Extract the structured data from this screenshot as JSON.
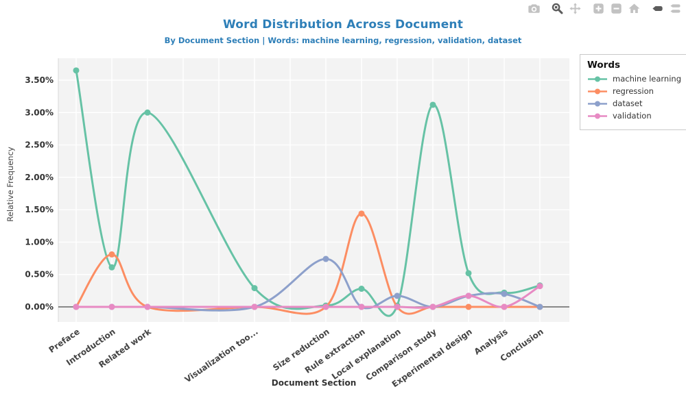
{
  "header": {
    "title": "Word Distribution Across Document",
    "subtitle": "By Document Section | Words: machine learning, regression, validation, dataset"
  },
  "toolbar": {
    "buttons": [
      {
        "name": "camera",
        "active": false,
        "group_start": false
      },
      {
        "name": "zoom",
        "active": true,
        "group_start": true
      },
      {
        "name": "pan",
        "active": false,
        "group_start": false
      },
      {
        "name": "zoom-in",
        "active": false,
        "group_start": true
      },
      {
        "name": "zoom-out",
        "active": false,
        "group_start": false
      },
      {
        "name": "autoscale-home",
        "active": false,
        "group_start": false
      },
      {
        "name": "hover-closest",
        "active": true,
        "group_start": true
      },
      {
        "name": "hover-compare",
        "active": false,
        "group_start": false
      }
    ]
  },
  "colors": {
    "title_blue": "#2e7fb8",
    "plot_bg": "#f3f3f3",
    "grid": "#ffffff",
    "zero_line": "#444444",
    "axis_line": "#d8d8d8",
    "tick_text": "#333333",
    "icon_gray": "#c2c2c2",
    "icon_active": "#5c5c5c"
  },
  "chart_data": {
    "type": "line",
    "line_shape": "spline",
    "markers": true,
    "grid": true,
    "title": "Word Distribution Across Document",
    "subtitle": "By Document Section | Words: machine learning, regression, validation, dataset",
    "xlabel": "Document Section",
    "ylabel": "Relative Frequency",
    "legend_title": "Words",
    "legend_position": "right",
    "categories": [
      "Preface",
      "Introduction",
      "Related work",
      "Visualization too...",
      "Size reduction",
      "Rule extraction",
      "Local explanation",
      "Comparison study",
      "Experimental design",
      "Analysis",
      "Conclusion"
    ],
    "x": [
      0,
      1,
      2,
      5,
      7,
      8,
      9,
      10,
      11,
      12,
      13
    ],
    "x_gridlines": [
      0,
      1,
      2,
      3,
      4,
      5,
      6,
      7,
      8,
      9,
      10,
      11,
      12,
      13
    ],
    "xlim": [
      -0.5,
      13.83
    ],
    "ylim": [
      -0.23,
      3.84
    ],
    "y_unit": "percent",
    "y_tick_values": [
      0,
      0.5,
      1.0,
      1.5,
      2.0,
      2.5,
      3.0,
      3.5
    ],
    "y_tick_labels": [
      "0.00%",
      "0.50%",
      "1.00%",
      "1.50%",
      "2.00%",
      "2.50%",
      "3.00%",
      "3.50%"
    ],
    "series": [
      {
        "name": "machine learning",
        "color": "#66c2a5",
        "values": [
          3.65,
          0.61,
          3.0,
          0.29,
          0.02,
          0.28,
          0.02,
          3.12,
          0.52,
          0.22,
          0.33
        ]
      },
      {
        "name": "regression",
        "color": "#fc8d62",
        "values": [
          0,
          0.81,
          0,
          0,
          0,
          1.44,
          0,
          0,
          0,
          0,
          0
        ]
      },
      {
        "name": "dataset",
        "color": "#8da0cb",
        "values": [
          0,
          0,
          0,
          0,
          0.74,
          0,
          0.17,
          0,
          0.17,
          0.2,
          0
        ]
      },
      {
        "name": "validation",
        "color": "#e78ac3",
        "values": [
          0,
          0,
          0,
          0,
          0,
          0,
          0,
          0,
          0.17,
          0,
          0.32
        ]
      }
    ]
  }
}
